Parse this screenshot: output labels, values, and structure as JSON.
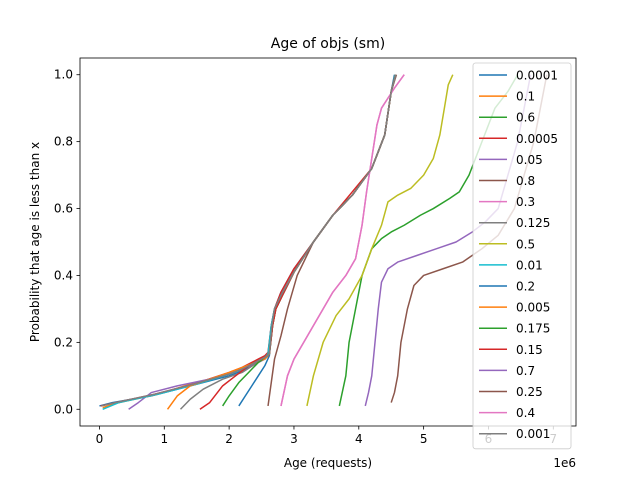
{
  "chart_data": {
    "type": "line",
    "title": "Age of objs (sm)",
    "xlabel": "Age (requests)",
    "ylabel": "Probability that age is less than x",
    "x_offset_label": "1e6",
    "x_scale": 1000000,
    "xlim": [
      -0.3,
      7.35
    ],
    "ylim": [
      -0.05,
      1.05
    ],
    "x_ticks": [
      0,
      1,
      2,
      3,
      4,
      5,
      6,
      7
    ],
    "y_ticks": [
      0.0,
      0.2,
      0.4,
      0.6,
      0.8,
      1.0
    ],
    "y_tick_labels": [
      "0.0",
      "0.2",
      "0.4",
      "0.6",
      "0.8",
      "1.0"
    ],
    "grid": false,
    "legend_position": "right",
    "series": [
      {
        "name": "0.0001",
        "color": "#1f77b4",
        "x": [
          0.0,
          0.2,
          0.8,
          1.4,
          2.0,
          2.2,
          2.35,
          2.45,
          2.55,
          2.6,
          2.65,
          2.7,
          2.8,
          3.0,
          3.3,
          3.6,
          3.9,
          4.2,
          4.4,
          4.5,
          4.55
        ],
        "y": [
          0.01,
          0.02,
          0.04,
          0.07,
          0.1,
          0.115,
          0.13,
          0.145,
          0.15,
          0.16,
          0.25,
          0.3,
          0.35,
          0.42,
          0.5,
          0.58,
          0.64,
          0.72,
          0.82,
          0.95,
          1.0
        ]
      },
      {
        "name": "0.1",
        "color": "#ff7f0e",
        "x": [
          0.05,
          0.3,
          0.9,
          1.4,
          2.0,
          2.2,
          2.35,
          2.45,
          2.55,
          2.62,
          2.66,
          2.7,
          2.8,
          3.0,
          3.3,
          3.6,
          3.9,
          4.2,
          4.4,
          4.5,
          4.57
        ],
        "y": [
          0.005,
          0.02,
          0.045,
          0.075,
          0.105,
          0.12,
          0.135,
          0.145,
          0.155,
          0.165,
          0.25,
          0.3,
          0.34,
          0.41,
          0.5,
          0.58,
          0.64,
          0.72,
          0.82,
          0.95,
          1.0
        ]
      },
      {
        "name": "0.6",
        "color": "#2ca02c",
        "x": [
          3.7,
          3.8,
          3.85,
          3.95,
          4.05,
          4.2,
          4.35,
          4.5,
          4.7,
          4.95,
          5.15,
          5.4,
          5.55,
          5.7,
          5.8,
          5.9,
          6.0,
          6.1,
          6.3,
          6.45
        ],
        "y": [
          0.01,
          0.1,
          0.2,
          0.3,
          0.4,
          0.48,
          0.51,
          0.53,
          0.55,
          0.58,
          0.6,
          0.63,
          0.65,
          0.7,
          0.75,
          0.8,
          0.85,
          0.9,
          0.95,
          1.0
        ]
      },
      {
        "name": "0.0005",
        "color": "#d62728",
        "x": [
          0.02,
          0.25,
          0.85,
          1.45,
          2.0,
          2.2,
          2.35,
          2.45,
          2.55,
          2.6,
          2.65,
          2.7,
          2.8,
          3.0,
          3.3,
          3.6,
          3.9,
          4.2,
          4.4,
          4.5,
          4.56
        ],
        "y": [
          0.01,
          0.02,
          0.045,
          0.075,
          0.11,
          0.125,
          0.14,
          0.15,
          0.16,
          0.17,
          0.25,
          0.3,
          0.35,
          0.42,
          0.5,
          0.58,
          0.65,
          0.72,
          0.82,
          0.95,
          1.0
        ]
      },
      {
        "name": "0.05",
        "color": "#9467bd",
        "x": [
          0.45,
          0.6,
          0.8,
          1.2,
          1.7,
          2.1,
          2.4,
          2.55,
          2.62,
          2.67,
          2.72,
          2.82,
          3.0,
          3.3,
          3.6,
          3.9,
          4.2,
          4.4,
          4.5,
          4.57
        ],
        "y": [
          0.0,
          0.02,
          0.05,
          0.07,
          0.09,
          0.115,
          0.135,
          0.15,
          0.165,
          0.25,
          0.3,
          0.34,
          0.41,
          0.5,
          0.58,
          0.64,
          0.72,
          0.82,
          0.95,
          1.0
        ]
      },
      {
        "name": "0.8",
        "color": "#8c564b",
        "x": [
          4.5,
          4.55,
          4.6,
          4.65,
          4.75,
          4.85,
          5.0,
          5.3,
          5.6,
          5.9,
          6.15,
          6.4,
          6.55,
          6.7,
          6.8,
          6.9
        ],
        "y": [
          0.02,
          0.05,
          0.1,
          0.2,
          0.3,
          0.37,
          0.4,
          0.42,
          0.44,
          0.48,
          0.52,
          0.6,
          0.7,
          0.8,
          0.9,
          1.0
        ]
      },
      {
        "name": "0.3",
        "color": "#e377c2",
        "x": [
          2.8,
          2.9,
          3.0,
          3.15,
          3.3,
          3.45,
          3.6,
          3.8,
          3.95,
          4.05,
          4.12,
          4.2,
          4.28,
          4.35,
          4.45,
          4.55,
          4.7
        ],
        "y": [
          0.01,
          0.1,
          0.15,
          0.2,
          0.25,
          0.3,
          0.35,
          0.4,
          0.45,
          0.55,
          0.65,
          0.75,
          0.85,
          0.9,
          0.93,
          0.96,
          1.0
        ]
      },
      {
        "name": "0.125",
        "color": "#7f7f7f",
        "x": [
          1.25,
          1.4,
          1.6,
          1.9,
          2.2,
          2.4,
          2.55,
          2.62,
          2.67,
          2.72,
          2.82,
          3.0,
          3.3,
          3.6,
          3.9,
          4.2,
          4.4,
          4.5,
          4.57
        ],
        "y": [
          0.0,
          0.03,
          0.06,
          0.09,
          0.11,
          0.135,
          0.15,
          0.165,
          0.25,
          0.3,
          0.34,
          0.41,
          0.5,
          0.58,
          0.64,
          0.72,
          0.82,
          0.95,
          1.0
        ]
      },
      {
        "name": "0.5",
        "color": "#bcbd22",
        "x": [
          3.2,
          3.3,
          3.45,
          3.65,
          3.85,
          4.05,
          4.2,
          4.35,
          4.45,
          4.6,
          4.8,
          5.0,
          5.15,
          5.25,
          5.32,
          5.38,
          5.45
        ],
        "y": [
          0.01,
          0.1,
          0.2,
          0.28,
          0.33,
          0.4,
          0.48,
          0.55,
          0.62,
          0.64,
          0.66,
          0.7,
          0.75,
          0.82,
          0.9,
          0.97,
          1.0
        ]
      },
      {
        "name": "0.01",
        "color": "#17becf",
        "x": [
          0.05,
          0.3,
          0.9,
          1.5,
          2.0,
          2.2,
          2.35,
          2.45,
          2.55,
          2.6,
          2.65,
          2.7,
          2.8,
          3.0,
          3.3,
          3.6,
          3.9,
          4.2,
          4.4,
          4.5,
          4.56
        ],
        "y": [
          0.0,
          0.02,
          0.045,
          0.075,
          0.105,
          0.12,
          0.135,
          0.145,
          0.155,
          0.165,
          0.25,
          0.3,
          0.34,
          0.41,
          0.5,
          0.58,
          0.64,
          0.72,
          0.82,
          0.95,
          1.0
        ]
      },
      {
        "name": "0.2",
        "color": "#1f77b4",
        "x": [
          2.15,
          2.25,
          2.35,
          2.45,
          2.55,
          2.62,
          2.67,
          2.72,
          2.82,
          3.0,
          3.3,
          3.6,
          3.9,
          4.2,
          4.4,
          4.5,
          4.57
        ],
        "y": [
          0.01,
          0.04,
          0.07,
          0.1,
          0.13,
          0.16,
          0.25,
          0.3,
          0.34,
          0.41,
          0.5,
          0.58,
          0.64,
          0.72,
          0.82,
          0.95,
          1.0
        ]
      },
      {
        "name": "0.005",
        "color": "#ff7f0e",
        "x": [
          1.05,
          1.2,
          1.4,
          1.7,
          2.0,
          2.2,
          2.4,
          2.55,
          2.62,
          2.67,
          2.72,
          2.82,
          3.0,
          3.3,
          3.6,
          3.9,
          4.2,
          4.4,
          4.5,
          4.57
        ],
        "y": [
          0.0,
          0.04,
          0.07,
          0.09,
          0.11,
          0.125,
          0.14,
          0.15,
          0.165,
          0.25,
          0.3,
          0.34,
          0.41,
          0.5,
          0.58,
          0.64,
          0.72,
          0.82,
          0.95,
          1.0
        ]
      },
      {
        "name": "0.175",
        "color": "#2ca02c",
        "x": [
          1.9,
          2.0,
          2.15,
          2.3,
          2.45,
          2.55,
          2.62,
          2.67,
          2.72,
          2.82,
          3.0,
          3.3,
          3.6,
          3.9,
          4.2,
          4.4,
          4.5,
          4.57
        ],
        "y": [
          0.01,
          0.04,
          0.08,
          0.11,
          0.14,
          0.155,
          0.165,
          0.25,
          0.3,
          0.34,
          0.41,
          0.5,
          0.58,
          0.64,
          0.72,
          0.82,
          0.95,
          1.0
        ]
      },
      {
        "name": "0.15",
        "color": "#d62728",
        "x": [
          1.55,
          1.7,
          1.9,
          2.1,
          2.3,
          2.45,
          2.55,
          2.62,
          2.67,
          2.72,
          2.82,
          3.0,
          3.3,
          3.6,
          3.9,
          4.2,
          4.4,
          4.5,
          4.57
        ],
        "y": [
          0.0,
          0.02,
          0.07,
          0.1,
          0.13,
          0.145,
          0.155,
          0.165,
          0.25,
          0.3,
          0.34,
          0.41,
          0.5,
          0.58,
          0.64,
          0.72,
          0.82,
          0.95,
          1.0
        ]
      },
      {
        "name": "0.7",
        "color": "#9467bd",
        "x": [
          4.1,
          4.15,
          4.2,
          4.25,
          4.3,
          4.35,
          4.45,
          4.6,
          4.9,
          5.2,
          5.5,
          5.75,
          5.95,
          6.15,
          6.3,
          6.45,
          6.55,
          6.65
        ],
        "y": [
          0.01,
          0.05,
          0.1,
          0.2,
          0.3,
          0.38,
          0.42,
          0.44,
          0.46,
          0.48,
          0.5,
          0.53,
          0.56,
          0.6,
          0.7,
          0.8,
          0.9,
          1.0
        ]
      },
      {
        "name": "0.25",
        "color": "#8c564b",
        "x": [
          2.6,
          2.7,
          2.8,
          2.9,
          3.05,
          3.3,
          3.6,
          3.9,
          4.2,
          4.4,
          4.5,
          4.58
        ],
        "y": [
          0.01,
          0.15,
          0.22,
          0.3,
          0.4,
          0.5,
          0.58,
          0.64,
          0.72,
          0.82,
          0.95,
          1.0
        ]
      },
      {
        "name": "0.4",
        "color": "#e377c2",
        "x": [
          2.8,
          2.9,
          3.0,
          3.15,
          3.3,
          3.45,
          3.6,
          3.8,
          3.95,
          4.05,
          4.12,
          4.2,
          4.28,
          4.35,
          4.45,
          4.55,
          4.7
        ],
        "y": [
          0.01,
          0.1,
          0.15,
          0.2,
          0.25,
          0.3,
          0.35,
          0.4,
          0.45,
          0.55,
          0.65,
          0.75,
          0.85,
          0.9,
          0.93,
          0.96,
          1.0
        ]
      },
      {
        "name": "0.001",
        "color": "#7f7f7f",
        "x": [
          0.03,
          0.25,
          0.85,
          1.45,
          2.0,
          2.2,
          2.35,
          2.45,
          2.55,
          2.62,
          2.66,
          2.7,
          2.8,
          3.0,
          3.3,
          3.6,
          3.9,
          4.2,
          4.4,
          4.5,
          4.57
        ],
        "y": [
          0.01,
          0.02,
          0.045,
          0.075,
          0.105,
          0.12,
          0.135,
          0.145,
          0.155,
          0.165,
          0.25,
          0.3,
          0.34,
          0.41,
          0.5,
          0.58,
          0.64,
          0.72,
          0.82,
          0.95,
          1.0
        ]
      }
    ]
  }
}
